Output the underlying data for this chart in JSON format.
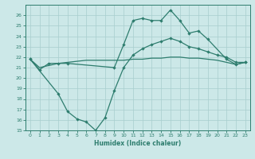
{
  "line1_x": [
    0,
    1,
    2,
    3,
    4,
    9,
    10,
    11,
    12,
    13,
    14,
    15,
    16,
    17,
    18,
    19,
    21,
    22,
    23
  ],
  "line1_y": [
    21.8,
    20.8,
    21.4,
    21.4,
    21.4,
    21.0,
    23.2,
    25.5,
    25.7,
    25.5,
    25.5,
    26.5,
    25.5,
    24.3,
    24.5,
    23.7,
    21.8,
    21.3,
    21.5
  ],
  "line2_x": [
    0,
    3,
    4,
    5,
    6,
    7,
    8,
    9,
    10,
    11,
    12,
    13,
    14,
    15,
    16,
    17,
    18,
    19,
    20,
    21,
    22,
    23
  ],
  "line2_y": [
    21.8,
    18.5,
    16.8,
    16.1,
    15.8,
    15.0,
    16.2,
    18.8,
    21.0,
    22.2,
    22.8,
    23.2,
    23.5,
    23.8,
    23.5,
    23.0,
    22.8,
    22.5,
    22.2,
    22.0,
    21.5,
    21.5
  ],
  "line3_x": [
    0,
    1,
    2,
    3,
    4,
    5,
    6,
    7,
    8,
    9,
    10,
    11,
    12,
    13,
    14,
    15,
    16,
    17,
    18,
    19,
    20,
    21,
    22,
    23
  ],
  "line3_y": [
    21.8,
    21.0,
    21.2,
    21.4,
    21.5,
    21.6,
    21.7,
    21.7,
    21.7,
    21.7,
    21.7,
    21.8,
    21.8,
    21.9,
    21.9,
    22.0,
    22.0,
    21.9,
    21.9,
    21.8,
    21.7,
    21.5,
    21.3,
    21.5
  ],
  "color": "#2e7d6e",
  "bg_color": "#cce8e8",
  "grid_color": "#a8cece",
  "xlabel": "Humidex (Indice chaleur)",
  "ylim": [
    15,
    27
  ],
  "xlim": [
    -0.5,
    23.5
  ],
  "yticks": [
    15,
    16,
    17,
    18,
    19,
    20,
    21,
    22,
    23,
    24,
    25,
    26
  ],
  "xticks": [
    0,
    1,
    2,
    3,
    4,
    5,
    6,
    7,
    8,
    9,
    10,
    11,
    12,
    13,
    14,
    15,
    16,
    17,
    18,
    19,
    20,
    21,
    22,
    23
  ]
}
